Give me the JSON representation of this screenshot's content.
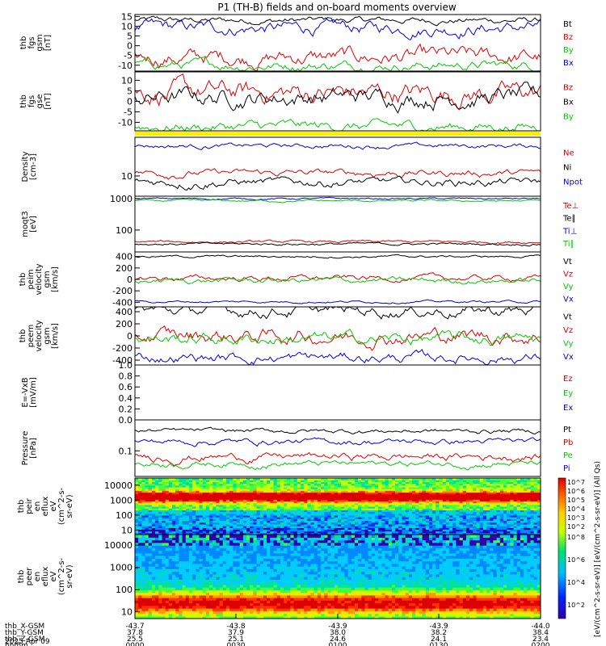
{
  "title": "P1 (TH-B) fields and on-board moments overview",
  "panels": [
    {
      "id": "fgs-gsm",
      "ylabel": [
        "thb",
        "fgs",
        "gsm",
        "[nT]"
      ],
      "yticks": [
        15,
        10,
        5,
        0,
        -5,
        -10
      ],
      "ylim": [
        -13,
        16
      ],
      "legend": [
        {
          "label": "Bt",
          "color": "#000000"
        },
        {
          "label": "Bz",
          "color": "#dd0000"
        },
        {
          "label": "By",
          "color": "#00cc00"
        },
        {
          "label": "Bx",
          "color": "#0000dd"
        }
      ]
    },
    {
      "id": "fgs-gse",
      "ylabel": [
        "thb",
        "fgs",
        "gse",
        "[nT]"
      ],
      "yticks": [
        10,
        5,
        0,
        -5,
        -10
      ],
      "ylim": [
        -14,
        14
      ],
      "legend": [
        {
          "label": "Bz",
          "color": "#dd0000"
        },
        {
          "label": "Bx",
          "color": "#000000"
        },
        {
          "label": "By",
          "color": "#00cc00"
        }
      ]
    },
    {
      "id": "density",
      "ylabel": [
        "Density",
        "[cm-3]"
      ],
      "yticks": [
        10
      ],
      "ylim_log": [
        3,
        100
      ],
      "legend": [
        {
          "label": "Ne",
          "color": "#dd0000"
        },
        {
          "label": "Ni",
          "color": "#000000"
        },
        {
          "label": "Npot",
          "color": "#0000dd"
        }
      ]
    },
    {
      "id": "temperature",
      "ylabel": [
        "moqt3",
        "[eV]"
      ],
      "yticks": [
        1000,
        100
      ],
      "ylim_log": [
        20,
        1200
      ],
      "legend": [
        {
          "label": "Te⊥",
          "color": "#dd0000"
        },
        {
          "label": "Te∥",
          "color": "#000000"
        },
        {
          "label": "Ti⊥",
          "color": "#0000dd"
        },
        {
          "label": "Ti∥",
          "color": "#00cc00"
        }
      ]
    },
    {
      "id": "peim-velocity",
      "ylabel": [
        "thb",
        "peim",
        "velocity",
        "gsm",
        "[km/s]"
      ],
      "yticks": [
        400,
        200,
        0,
        -200,
        -400
      ],
      "ylim": [
        -480,
        480
      ],
      "legend": [
        {
          "label": "Vt",
          "color": "#000000"
        },
        {
          "label": "Vz",
          "color": "#dd0000"
        },
        {
          "label": "Vy",
          "color": "#00cc00"
        },
        {
          "label": "Vx",
          "color": "#0000dd"
        }
      ]
    },
    {
      "id": "peem-velocity",
      "ylabel": [
        "thb",
        "peem",
        "velocity",
        "gsm",
        "[km/s]"
      ],
      "yticks": [
        400,
        200,
        0,
        -200,
        -400
      ],
      "ylim": [
        -480,
        480
      ],
      "legend": [
        {
          "label": "Vt",
          "color": "#000000"
        },
        {
          "label": "Vz",
          "color": "#dd0000"
        },
        {
          "label": "Vy",
          "color": "#00cc00"
        },
        {
          "label": "Vx",
          "color": "#0000dd"
        }
      ]
    },
    {
      "id": "efield",
      "ylabel": [
        "E=-VxB",
        "[mV/m]"
      ],
      "yticks": [
        "1.0",
        "0.8",
        "0.6",
        "0.4",
        "0.2",
        "0.0"
      ],
      "ylim": [
        0,
        1
      ],
      "legend": [
        {
          "label": "Ez",
          "color": "#dd0000"
        },
        {
          "label": "Ey",
          "color": "#00cc00"
        },
        {
          "label": "Ex",
          "color": "#0000dd"
        }
      ]
    },
    {
      "id": "pressure",
      "ylabel": [
        "Pressure",
        "[nPa]"
      ],
      "yticks": [
        0.1
      ],
      "ylim_log": [
        0.02,
        0.7
      ],
      "legend": [
        {
          "label": "Pt",
          "color": "#000000"
        },
        {
          "label": "Pb",
          "color": "#dd0000"
        },
        {
          "label": "Pe",
          "color": "#00cc00"
        },
        {
          "label": "Pi",
          "color": "#0000dd"
        }
      ]
    },
    {
      "id": "peir-spec",
      "ylabel": [
        "thb",
        "peir",
        "en",
        "eflux",
        "eV",
        "(cm^2-s-",
        "sr-eV)"
      ],
      "yticks": [
        10000,
        1000,
        100,
        10
      ],
      "ylim_log": [
        5,
        30000
      ]
    },
    {
      "id": "peer-spec",
      "ylabel": [
        "thb",
        "peer",
        "en",
        "eflux",
        "eV",
        "(cm^2-s-",
        "sr-eV)"
      ],
      "yticks": [
        10000,
        1000,
        100,
        10
      ],
      "ylim_log": [
        5,
        30000
      ]
    }
  ],
  "colorbar": {
    "ticks": [
      "10^7",
      "10^6",
      "10^5",
      "10^4",
      "10^3",
      "10^2",
      "10^8",
      "10^6",
      "10^4",
      "10^2"
    ],
    "label": "[eV/(cm^2-s-sr-eV)] [eV/(cm^2-s-sr-eV)] (All Qs)"
  },
  "chart_data": {
    "type": "line",
    "title": "P1 (TH-B) fields and on-board moments overview",
    "x_ticks": [
      "0000",
      "0030",
      "0100",
      "0130",
      "0200"
    ],
    "x_date": "2025 Apr 09",
    "ephemeris": [
      {
        "label": "thb_X-GSM",
        "values": [
          "-43.7",
          "-43.8",
          "-43.9",
          "-43.9",
          "-44.0"
        ]
      },
      {
        "label": "thb_Y-GSM",
        "values": [
          "37.8",
          "37.9",
          "38.0",
          "38.2",
          "38.4"
        ]
      },
      {
        "label": "thb_Z-GSM",
        "values": [
          "25.5",
          "25.1",
          "24.6",
          "24.1",
          "23.4"
        ]
      },
      {
        "label": "hhmm",
        "values": [
          "0000",
          "0030",
          "0100",
          "0130",
          "0200"
        ]
      }
    ],
    "approx_levels": {
      "fgs_gsm": {
        "Bt": 13,
        "Bx": 9,
        "Bz": -6,
        "By": -10
      },
      "fgs_gse": {
        "Bz": 4,
        "Bx": 2,
        "By": -12
      },
      "density": {
        "Npot": 60,
        "Ne": 12,
        "Ni": 7
      },
      "temperature": {
        "Ti_perp": 1000,
        "Ti_par": 850,
        "Te_perp": 42,
        "Te_par": 36
      },
      "peim_velocity": {
        "Vt": 400,
        "Vz": 20,
        "Vy": -20,
        "Vx": -390
      },
      "peem_velocity": {
        "Vt": 420,
        "Vz": 0,
        "Vy": -50,
        "Vx": -360
      },
      "pressure": {
        "Pt": 0.35,
        "Pi": 0.18,
        "Pb": 0.07,
        "Pe": 0.045
      }
    }
  }
}
